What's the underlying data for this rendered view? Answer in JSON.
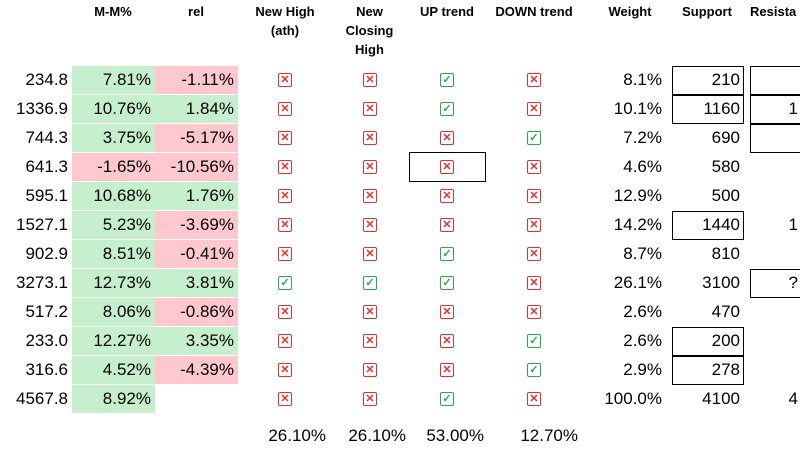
{
  "headers": {
    "mm": "M-M%",
    "rel": "rel",
    "new_high": "New High (ath)",
    "new_closing_high": "New Closing High",
    "up_trend": "UP trend",
    "down_trend": "DOWN trend",
    "weight": "Weight",
    "support": "Support",
    "resistance": "Resista"
  },
  "rows": [
    {
      "price": "234.8",
      "mm": "7.81%",
      "mm_pos": true,
      "rel": "-1.11%",
      "rel_pos": false,
      "new_high": "x",
      "new_closing_high": "x",
      "up": "ok",
      "down": "x",
      "weight": "8.1%",
      "support": "210",
      "support_boxed": true,
      "resistance": "",
      "res_boxed": true
    },
    {
      "price": "1336.9",
      "mm": "10.76%",
      "mm_pos": true,
      "rel": "1.84%",
      "rel_pos": true,
      "new_high": "x",
      "new_closing_high": "x",
      "up": "ok",
      "down": "x",
      "weight": "10.1%",
      "support": "1160",
      "support_boxed": true,
      "resistance": "1",
      "res_boxed": true
    },
    {
      "price": "744.3",
      "mm": "3.75%",
      "mm_pos": true,
      "rel": "-5.17%",
      "rel_pos": false,
      "new_high": "x",
      "new_closing_high": "x",
      "up": "x",
      "down": "ok",
      "weight": "7.2%",
      "support": "690",
      "support_boxed": false,
      "resistance": "",
      "res_boxed": true
    },
    {
      "price": "641.3",
      "mm": "-1.65%",
      "mm_pos": false,
      "rel": "-10.56%",
      "rel_pos": false,
      "new_high": "x",
      "new_closing_high": "x",
      "up": "x",
      "down": "x",
      "weight": "4.6%",
      "support": "580",
      "support_boxed": false,
      "resistance": "",
      "res_boxed": false
    },
    {
      "price": "595.1",
      "mm": "10.68%",
      "mm_pos": true,
      "rel": "1.76%",
      "rel_pos": true,
      "new_high": "x",
      "new_closing_high": "x",
      "up": "x",
      "down": "x",
      "weight": "12.9%",
      "support": "500",
      "support_boxed": false,
      "resistance": "",
      "res_boxed": false
    },
    {
      "price": "1527.1",
      "mm": "5.23%",
      "mm_pos": true,
      "rel": "-3.69%",
      "rel_pos": false,
      "new_high": "x",
      "new_closing_high": "x",
      "up": "x",
      "down": "x",
      "weight": "14.2%",
      "support": "1440",
      "support_boxed": true,
      "resistance": "1",
      "res_boxed": false
    },
    {
      "price": "902.9",
      "mm": "8.51%",
      "mm_pos": true,
      "rel": "-0.41%",
      "rel_pos": false,
      "new_high": "x",
      "new_closing_high": "x",
      "up": "ok",
      "down": "x",
      "weight": "8.7%",
      "support": "810",
      "support_boxed": false,
      "resistance": "",
      "res_boxed": false
    },
    {
      "price": "3273.1",
      "mm": "12.73%",
      "mm_pos": true,
      "rel": "3.81%",
      "rel_pos": true,
      "new_high": "ok",
      "new_closing_high": "ok",
      "up": "ok",
      "down": "x",
      "weight": "26.1%",
      "support": "3100",
      "support_boxed": false,
      "resistance": "?",
      "res_boxed": true
    },
    {
      "price": "517.2",
      "mm": "8.06%",
      "mm_pos": true,
      "rel": "-0.86%",
      "rel_pos": false,
      "new_high": "x",
      "new_closing_high": "x",
      "up": "x",
      "down": "x",
      "weight": "2.6%",
      "support": "470",
      "support_boxed": false,
      "resistance": "",
      "res_boxed": false
    },
    {
      "price": "233.0",
      "mm": "12.27%",
      "mm_pos": true,
      "rel": "3.35%",
      "rel_pos": true,
      "new_high": "x",
      "new_closing_high": "x",
      "up": "x",
      "down": "ok",
      "weight": "2.6%",
      "support": "200",
      "support_boxed": true,
      "resistance": "",
      "res_boxed": false
    },
    {
      "price": "316.6",
      "mm": "4.52%",
      "mm_pos": true,
      "rel": "-4.39%",
      "rel_pos": false,
      "new_high": "x",
      "new_closing_high": "x",
      "up": "x",
      "down": "ok",
      "weight": "2.9%",
      "support": "278",
      "support_boxed": true,
      "resistance": "",
      "res_boxed": false
    },
    {
      "price": "4567.8",
      "mm": "8.92%",
      "mm_pos": true,
      "rel": "",
      "rel_pos": null,
      "new_high": "x",
      "new_closing_high": "x",
      "up": "ok",
      "down": "x",
      "weight": "100.0%",
      "support": "4100",
      "support_boxed": false,
      "resistance": "4",
      "res_boxed": false
    }
  ],
  "totals": {
    "new_high": "26.10%",
    "new_closing_high": "26.10%",
    "up_trend": "53.00%",
    "down_trend": "12.70%"
  },
  "selected_cell": {
    "row": 3,
    "column": "up"
  },
  "colors": {
    "positive_fill": "#c6efce",
    "negative_fill": "#ffc7ce",
    "cross_icon": "#e03030",
    "check_icon": "#2aa84a"
  }
}
